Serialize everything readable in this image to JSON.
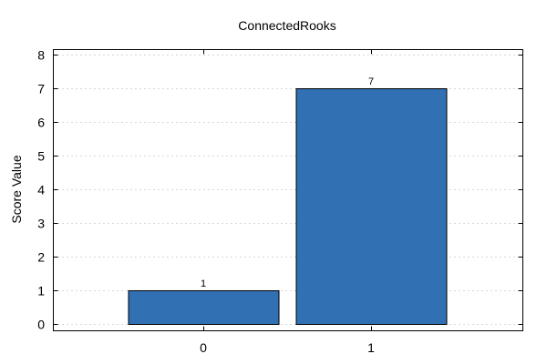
{
  "chart_data": {
    "type": "bar",
    "title": "ConnectedRooks",
    "xlabel": "",
    "ylabel": "Score Value",
    "categories": [
      "0",
      "1"
    ],
    "values": [
      1,
      7
    ],
    "data_labels": [
      "1",
      "7"
    ],
    "ylim": [
      0,
      8
    ],
    "yticks": [
      0,
      1,
      2,
      3,
      4,
      5,
      6,
      7,
      8
    ],
    "ytick_labels": [
      "0",
      "1",
      "2",
      "3",
      "4",
      "5",
      "6",
      "7",
      "8"
    ],
    "grid": true,
    "bar_color": "#3070b3"
  }
}
